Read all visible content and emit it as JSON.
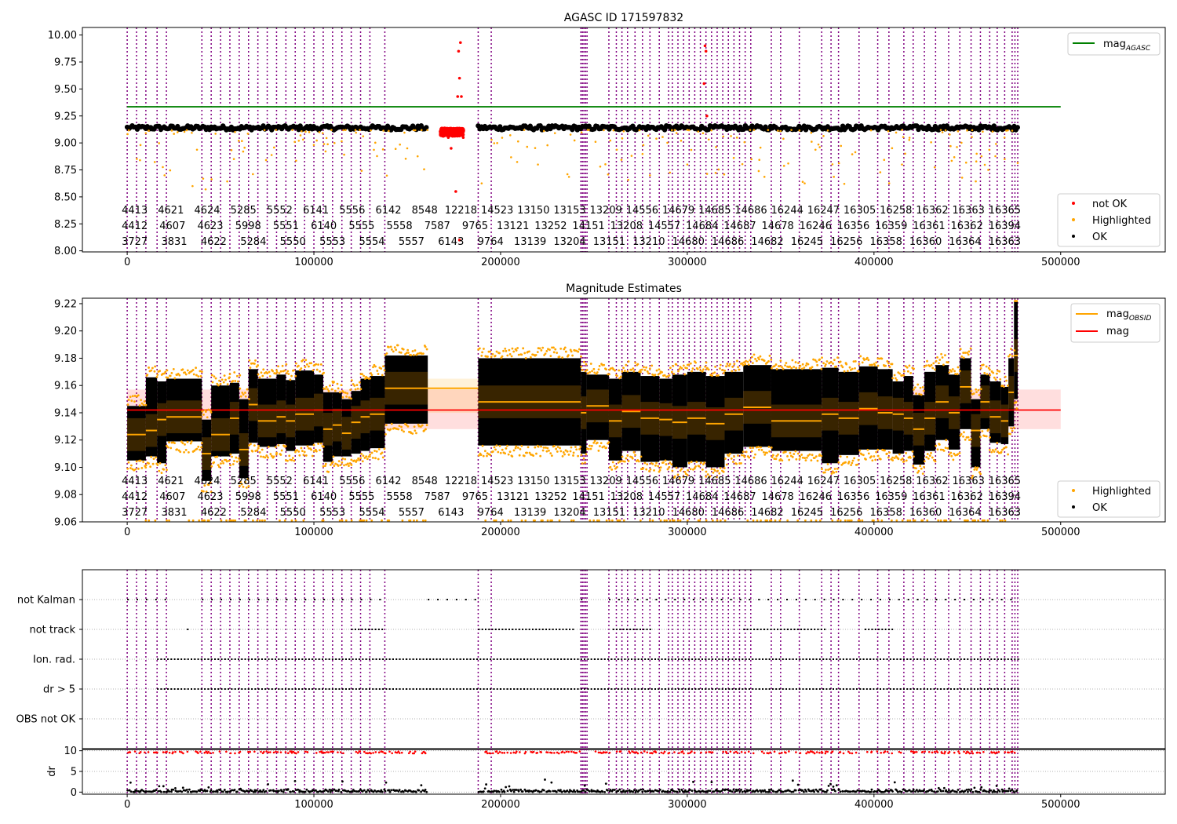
{
  "chart_data": [
    {
      "type": "scatter",
      "title": "AGASC ID 171597832",
      "xlim": [
        -24000,
        556000
      ],
      "ylim": [
        7.99,
        10.07
      ],
      "xticks": [
        0,
        100000,
        200000,
        300000,
        400000,
        500000
      ],
      "yticks": [
        8.0,
        8.25,
        8.5,
        8.75,
        9.0,
        9.25,
        9.5,
        9.75,
        10.0
      ],
      "ytick_format": "2",
      "legend_position": "upper-right",
      "lines": [
        {
          "name": "mag_AGASC",
          "label": "mag",
          "sub": "AGASC",
          "color": "#008000",
          "y": 9.335,
          "x": [
            0,
            500000
          ]
        }
      ],
      "series": [
        {
          "name": "not OK",
          "color": "#ff0000",
          "sample_points": [
            [
              170000,
              9.1
            ],
            [
              172000,
              9.05
            ],
            [
              173500,
              8.95
            ],
            [
              175000,
              9.1
            ],
            [
              176000,
              8.55
            ],
            [
              177500,
              9.85
            ],
            [
              178500,
              9.93
            ],
            [
              178000,
              9.6
            ],
            [
              177000,
              9.43
            ],
            [
              179000,
              9.43
            ],
            [
              180000,
              9.05
            ],
            [
              178000,
              8.1
            ],
            [
              309500,
              9.9
            ],
            [
              310000,
              9.85
            ],
            [
              309000,
              9.55
            ],
            [
              310500,
              9.25
            ]
          ]
        },
        {
          "name": "Highlighted",
          "color": "#ffa500",
          "sample_points": [
            [
              35000,
              8.6
            ],
            [
              42000,
              8.57
            ],
            [
              20000,
              8.7
            ],
            [
              150000,
              8.95
            ],
            [
              220000,
              8.8
            ],
            [
              280000,
              8.7
            ],
            [
              300000,
              8.8
            ],
            [
              415000,
              8.8
            ],
            [
              455000,
              8.9
            ],
            [
              470000,
              8.85
            ]
          ]
        },
        {
          "name": "OK",
          "color": "#000000",
          "median": 9.14,
          "x_range": [
            0,
            477000
          ]
        }
      ],
      "obsid_labels_rows": [
        [
          "4413",
          "4621",
          "4624",
          "5285",
          "5552",
          "6141",
          "5556",
          "6142",
          "8548",
          "12218",
          "14523",
          "13150",
          "13153",
          "13209",
          "14556",
          "14679",
          "14685",
          "14686",
          "16244",
          "16247",
          "16305",
          "16258",
          "16362",
          "16363",
          "16365"
        ],
        [
          "4412",
          "4607",
          "4623",
          "5998",
          "5551",
          "6140",
          "5555",
          "5558",
          "7587",
          "9765",
          "13121",
          "13252",
          "14151",
          "13208",
          "14557",
          "14684",
          "14687",
          "14678",
          "16246",
          "16356",
          "16359",
          "16361",
          "16362",
          "16394"
        ],
        [
          "3727",
          "3831",
          "4622",
          "5284",
          "5550",
          "5553",
          "5554",
          "5557",
          "6143",
          "9764",
          "13139",
          "13204",
          "13151",
          "13210",
          "14680",
          "14686",
          "14682",
          "16245",
          "16256",
          "16358",
          "16360",
          "16364",
          "16363"
        ]
      ]
    },
    {
      "type": "scatter",
      "title": "Magnitude Estimates",
      "xlim": [
        -24000,
        556000
      ],
      "ylim": [
        9.06,
        9.224
      ],
      "xticks": [
        0,
        100000,
        200000,
        300000,
        400000,
        500000
      ],
      "yticks": [
        9.06,
        9.08,
        9.1,
        9.12,
        9.14,
        9.16,
        9.18,
        9.2,
        9.22
      ],
      "ytick_format": "2",
      "legend_position": "upper-right",
      "lines": [
        {
          "name": "mag_OBSID",
          "label": "mag",
          "sub": "OBSID",
          "color": "#ffa500"
        },
        {
          "name": "mag",
          "label": "mag",
          "color": "#ff0000",
          "y": 9.142,
          "band": [
            9.128,
            9.157
          ],
          "x": [
            0,
            500000
          ]
        }
      ],
      "obsid_segments": [
        {
          "x0": 0,
          "x1": 10000,
          "mag": 9.124,
          "lo": 9.105,
          "hi": 9.145
        },
        {
          "x0": 10000,
          "x1": 16000,
          "mag": 9.127,
          "lo": 9.108,
          "hi": 9.166
        },
        {
          "x0": 16000,
          "x1": 21000,
          "mag": 9.135,
          "lo": 9.103,
          "hi": 9.163
        },
        {
          "x0": 21000,
          "x1": 40000,
          "mag": 9.137,
          "lo": 9.119,
          "hi": 9.165
        },
        {
          "x0": 40000,
          "x1": 45000,
          "mag": 9.11,
          "lo": 9.09,
          "hi": 9.135
        },
        {
          "x0": 45000,
          "x1": 55000,
          "mag": 9.124,
          "lo": 9.108,
          "hi": 9.16
        },
        {
          "x0": 55000,
          "x1": 60000,
          "mag": 9.136,
          "lo": 9.11,
          "hi": 9.162
        },
        {
          "x0": 60000,
          "x1": 65000,
          "mag": 9.113,
          "lo": 9.092,
          "hi": 9.15
        },
        {
          "x0": 65000,
          "x1": 70000,
          "mag": 9.146,
          "lo": 9.118,
          "hi": 9.172
        },
        {
          "x0": 70000,
          "x1": 80000,
          "mag": 9.134,
          "lo": 9.115,
          "hi": 9.165
        },
        {
          "x0": 80000,
          "x1": 85000,
          "mag": 9.137,
          "lo": 9.117,
          "hi": 9.168
        },
        {
          "x0": 85000,
          "x1": 90000,
          "mag": 9.134,
          "lo": 9.112,
          "hi": 9.164
        },
        {
          "x0": 90000,
          "x1": 100000,
          "mag": 9.139,
          "lo": 9.116,
          "hi": 9.171
        },
        {
          "x0": 100000,
          "x1": 105000,
          "mag": 9.142,
          "lo": 9.118,
          "hi": 9.168
        },
        {
          "x0": 105000,
          "x1": 110000,
          "mag": 9.128,
          "lo": 9.104,
          "hi": 9.155
        },
        {
          "x0": 110000,
          "x1": 115000,
          "mag": 9.131,
          "lo": 9.108,
          "hi": 9.155
        },
        {
          "x0": 115000,
          "x1": 120000,
          "mag": 9.125,
          "lo": 9.108,
          "hi": 9.15
        },
        {
          "x0": 120000,
          "x1": 125000,
          "mag": 9.133,
          "lo": 9.11,
          "hi": 9.156
        },
        {
          "x0": 125000,
          "x1": 130000,
          "mag": 9.137,
          "lo": 9.112,
          "hi": 9.165
        },
        {
          "x0": 130000,
          "x1": 138000,
          "mag": 9.139,
          "lo": 9.114,
          "hi": 9.167
        },
        {
          "x0": 138000,
          "x1": 161000,
          "mag": 9.158,
          "lo": 9.132,
          "hi": 9.182
        },
        {
          "x0": 161000,
          "x1": 188000,
          "mag": 9.158,
          "lo": 9.14,
          "hi": 9.165,
          "band_only": true
        },
        {
          "x0": 188000,
          "x1": 243000,
          "mag": 9.148,
          "lo": 9.116,
          "hi": 9.18
        },
        {
          "x0": 243000,
          "x1": 246000,
          "mag": 9.14,
          "lo": 9.11,
          "hi": 9.17
        },
        {
          "x0": 246000,
          "x1": 258000,
          "mag": 9.145,
          "lo": 9.12,
          "hi": 9.168
        },
        {
          "x0": 258000,
          "x1": 265000,
          "mag": 9.134,
          "lo": 9.105,
          "hi": 9.165
        },
        {
          "x0": 265000,
          "x1": 275000,
          "mag": 9.141,
          "lo": 9.112,
          "hi": 9.17
        },
        {
          "x0": 275000,
          "x1": 285000,
          "mag": 9.136,
          "lo": 9.104,
          "hi": 9.167
        },
        {
          "x0": 285000,
          "x1": 292000,
          "mag": 9.135,
          "lo": 9.105,
          "hi": 9.165
        },
        {
          "x0": 292000,
          "x1": 300000,
          "mag": 9.133,
          "lo": 9.1,
          "hi": 9.168
        },
        {
          "x0": 300000,
          "x1": 310000,
          "mag": 9.136,
          "lo": 9.104,
          "hi": 9.17
        },
        {
          "x0": 310000,
          "x1": 320000,
          "mag": 9.132,
          "lo": 9.1,
          "hi": 9.167
        },
        {
          "x0": 320000,
          "x1": 330000,
          "mag": 9.139,
          "lo": 9.11,
          "hi": 9.17
        },
        {
          "x0": 330000,
          "x1": 345000,
          "mag": 9.144,
          "lo": 9.115,
          "hi": 9.175
        },
        {
          "x0": 345000,
          "x1": 372000,
          "mag": 9.134,
          "lo": 9.112,
          "hi": 9.172
        },
        {
          "x0": 372000,
          "x1": 381000,
          "mag": 9.139,
          "lo": 9.103,
          "hi": 9.173
        },
        {
          "x0": 381000,
          "x1": 392000,
          "mag": 9.136,
          "lo": 9.109,
          "hi": 9.17
        },
        {
          "x0": 392000,
          "x1": 402000,
          "mag": 9.143,
          "lo": 9.113,
          "hi": 9.174
        },
        {
          "x0": 402000,
          "x1": 410000,
          "mag": 9.14,
          "lo": 9.113,
          "hi": 9.172
        },
        {
          "x0": 410000,
          "x1": 416000,
          "mag": 9.139,
          "lo": 9.11,
          "hi": 9.163
        },
        {
          "x0": 416000,
          "x1": 421000,
          "mag": 9.136,
          "lo": 9.112,
          "hi": 9.167
        },
        {
          "x0": 421000,
          "x1": 427000,
          "mag": 9.128,
          "lo": 9.102,
          "hi": 9.153
        },
        {
          "x0": 427000,
          "x1": 433000,
          "mag": 9.136,
          "lo": 9.112,
          "hi": 9.17
        },
        {
          "x0": 433000,
          "x1": 440000,
          "mag": 9.148,
          "lo": 9.12,
          "hi": 9.175
        },
        {
          "x0": 440000,
          "x1": 446000,
          "mag": 9.14,
          "lo": 9.113,
          "hi": 9.168
        },
        {
          "x0": 446000,
          "x1": 452000,
          "mag": 9.159,
          "lo": 9.128,
          "hi": 9.18
        },
        {
          "x0": 452000,
          "x1": 457000,
          "mag": 9.127,
          "lo": 9.1,
          "hi": 9.15
        },
        {
          "x0": 457000,
          "x1": 462000,
          "mag": 9.148,
          "lo": 9.128,
          "hi": 9.168
        },
        {
          "x0": 462000,
          "x1": 468000,
          "mag": 9.137,
          "lo": 9.118,
          "hi": 9.163
        },
        {
          "x0": 468000,
          "x1": 472000,
          "mag": 9.134,
          "lo": 9.117,
          "hi": 9.159
        },
        {
          "x0": 472000,
          "x1": 475000,
          "mag": 9.155,
          "lo": 9.13,
          "hi": 9.18
        },
        {
          "x0": 475000,
          "x1": 477000,
          "mag": 9.182,
          "lo": 9.15,
          "hi": 9.222
        }
      ],
      "series": [
        {
          "name": "Highlighted",
          "color": "#ffa500"
        },
        {
          "name": "OK",
          "color": "#000000"
        }
      ],
      "obsid_labels_rows": [
        [
          "4413",
          "4621",
          "4624",
          "5285",
          "5552",
          "6141",
          "5556",
          "6142",
          "8548",
          "12218",
          "14523",
          "13150",
          "13153",
          "13209",
          "14556",
          "14679",
          "14685",
          "14686",
          "16244",
          "16247",
          "16305",
          "16258",
          "16362",
          "16363",
          "16365"
        ],
        [
          "4412",
          "4607",
          "4623",
          "5998",
          "5551",
          "6140",
          "5555",
          "5558",
          "7587",
          "9765",
          "13121",
          "13252",
          "14151",
          "13208",
          "14557",
          "14684",
          "14687",
          "14678",
          "16246",
          "16356",
          "16359",
          "16361",
          "16362",
          "16394"
        ],
        [
          "3727",
          "3831",
          "4622",
          "5284",
          "5550",
          "5553",
          "5554",
          "5557",
          "6143",
          "9764",
          "13139",
          "13204",
          "13151",
          "13210",
          "14680",
          "14686",
          "14682",
          "16245",
          "16256",
          "16358",
          "16360",
          "16364",
          "16363"
        ]
      ]
    },
    {
      "type": "scatter",
      "title": "",
      "xlim": [
        -24000,
        556000
      ],
      "categories": [
        "not Kalman",
        "not track",
        "Ion. rad.",
        "dr > 5",
        "OBS not OK"
      ],
      "flag_ranges": {
        "not Kalman": [
          [
            0,
            21000
          ],
          [
            40000,
            138000
          ],
          [
            161000,
            188000
          ],
          [
            243000,
            246000
          ],
          [
            258000,
            477000
          ]
        ],
        "not track": [
          [
            32000,
            33000
          ],
          [
            120000,
            138000
          ],
          [
            188000,
            240000
          ],
          [
            260000,
            280000
          ],
          [
            330000,
            375000
          ],
          [
            395000,
            410000
          ]
        ],
        "Ion. rad.": [
          [
            16000,
            477000
          ]
        ],
        "dr > 5": [
          [
            16000,
            477000
          ]
        ],
        "OBS not OK": []
      }
    },
    {
      "type": "scatter",
      "title": "",
      "ylabel": "dr",
      "xlim": [
        -24000,
        556000
      ],
      "ylim": [
        -0.5,
        10.5
      ],
      "xticks": [
        0,
        100000,
        200000,
        300000,
        400000,
        500000
      ],
      "yticks": [
        0,
        5,
        10
      ],
      "ytick_format": "0",
      "series": [
        {
          "name": "dr OK",
          "color": "#000000",
          "typical": 0.4
        },
        {
          "name": "dr not OK",
          "color": "#ff0000",
          "clipped_at": 10
        }
      ]
    }
  ],
  "obsid_boundaries": [
    0,
    5000,
    10000,
    16000,
    21000,
    40000,
    45000,
    50000,
    55000,
    60000,
    65000,
    70000,
    75000,
    80000,
    85000,
    90000,
    95000,
    100000,
    105000,
    110000,
    115000,
    120000,
    125000,
    130000,
    138000,
    188000,
    195000,
    243000,
    243800,
    244600,
    245500,
    246300,
    258000,
    262000,
    265000,
    268000,
    272000,
    276000,
    280000,
    285000,
    290000,
    292000,
    295000,
    298000,
    301000,
    304000,
    307000,
    310000,
    313000,
    316000,
    319000,
    322000,
    325000,
    328000,
    331000,
    334000,
    345000,
    350000,
    360000,
    372000,
    377000,
    381000,
    392000,
    402000,
    408000,
    416000,
    421000,
    427000,
    433000,
    440000,
    446000,
    452000,
    457000,
    462000,
    466000,
    470000,
    474000,
    475500,
    477000
  ],
  "obsid_boundary_color": "#800080",
  "legends": {
    "top": [
      "not OK",
      "Highlighted",
      "OK"
    ],
    "middle": [
      "Highlighted",
      "OK"
    ]
  }
}
